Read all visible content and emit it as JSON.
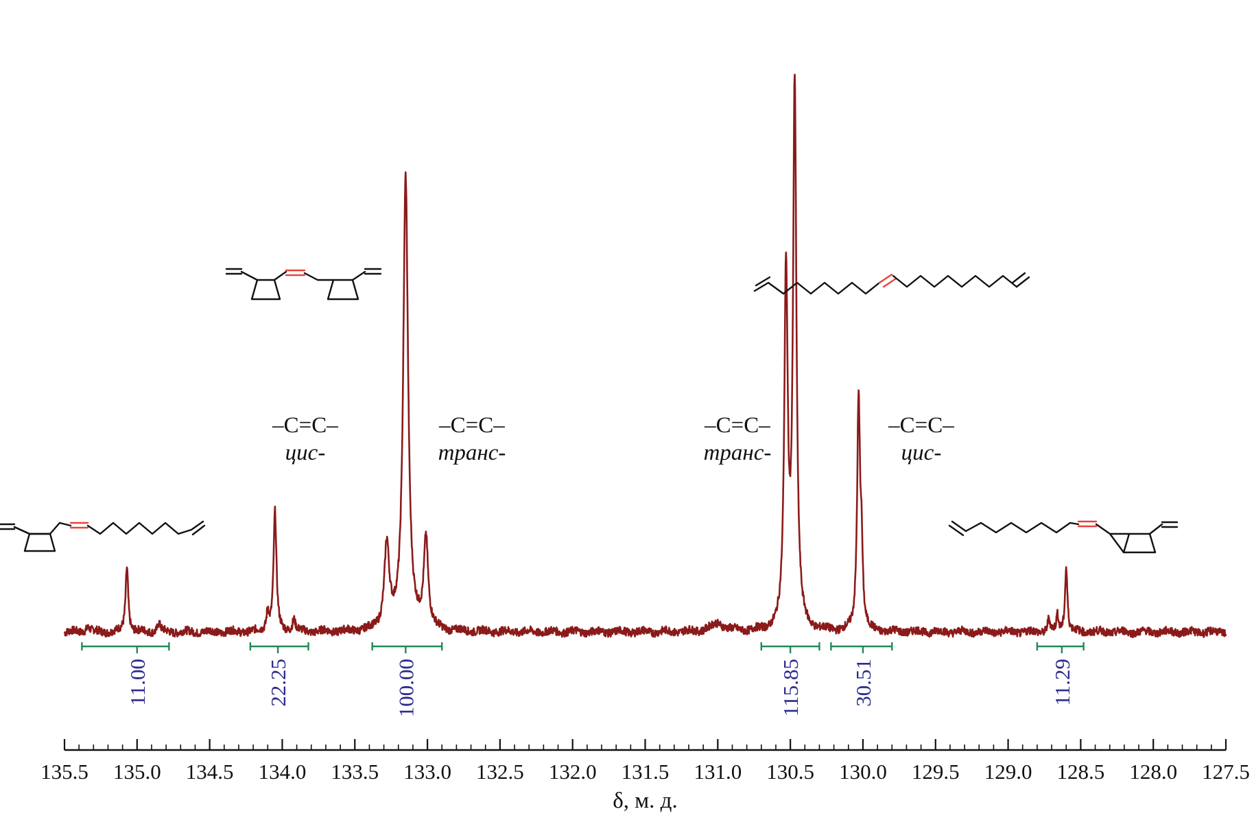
{
  "chart_data": {
    "type": "line",
    "xlabel": "δ, м. д.",
    "xlim": [
      135.5,
      127.5
    ],
    "x_reversed": true,
    "x_ticks": [
      "135.5",
      "135.0",
      "134.5",
      "134.0",
      "133.5",
      "133.0",
      "132.5",
      "132.0",
      "131.5",
      "131.0",
      "130.5",
      "130.0",
      "129.5",
      "129.0",
      "128.5",
      "128.0",
      "127.5"
    ],
    "series": [
      {
        "color": "#8b1a1a",
        "baseline": 0,
        "peaks": [
          {
            "x": 135.34,
            "h": 0.9,
            "w": 0.018
          },
          {
            "x": 135.07,
            "h": 11.5,
            "w": 0.011
          },
          {
            "x": 134.85,
            "h": 1.6,
            "w": 0.012
          },
          {
            "x": 134.1,
            "h": 3.6,
            "w": 0.01
          },
          {
            "x": 134.05,
            "h": 21.0,
            "w": 0.012
          },
          {
            "x": 133.92,
            "h": 2.2,
            "w": 0.012
          },
          {
            "x": 133.28,
            "h": 14.8,
            "w": 0.02
          },
          {
            "x": 133.15,
            "h": 80.0,
            "w": 0.02
          },
          {
            "x": 133.01,
            "h": 16.0,
            "w": 0.018
          },
          {
            "x": 131.0,
            "h": 1.4,
            "w": 0.06
          },
          {
            "x": 130.53,
            "h": 62.0,
            "w": 0.014
          },
          {
            "x": 130.47,
            "h": 95.0,
            "w": 0.014
          },
          {
            "x": 130.03,
            "h": 40.0,
            "w": 0.012
          },
          {
            "x": 130.01,
            "h": 12.0,
            "w": 0.01
          },
          {
            "x": 128.72,
            "h": 2.3,
            "w": 0.01
          },
          {
            "x": 128.66,
            "h": 3.0,
            "w": 0.008
          },
          {
            "x": 128.6,
            "h": 11.5,
            "w": 0.01
          }
        ]
      }
    ],
    "integrals": [
      {
        "label": "11.00",
        "from": 135.38,
        "to": 134.78,
        "center": 135.0
      },
      {
        "label": "22.25",
        "from": 134.22,
        "to": 133.82,
        "center": 134.03
      },
      {
        "label": "100.00",
        "from": 133.38,
        "to": 132.9,
        "center": 133.15
      },
      {
        "label": "115.85",
        "from": 130.7,
        "to": 130.3,
        "center": 130.5
      },
      {
        "label": "30.51",
        "from": 130.22,
        "to": 129.8,
        "center": 130.0
      },
      {
        "label": "11.29",
        "from": 128.8,
        "to": 128.48,
        "center": 128.63
      }
    ],
    "annotations": [
      {
        "bond": "–C=C–",
        "type": "цис-"
      },
      {
        "bond": "–C=C–",
        "type": "транс-"
      },
      {
        "bond": "–C=C–",
        "type": "транс-"
      },
      {
        "bond": "–C=C–",
        "type": "цис-"
      }
    ],
    "colors": {
      "spectrum": "#8b1a1a",
      "integral": "#1f8a56",
      "integral_label": "#2b2b8f",
      "double_bond": "#e8423a"
    }
  }
}
